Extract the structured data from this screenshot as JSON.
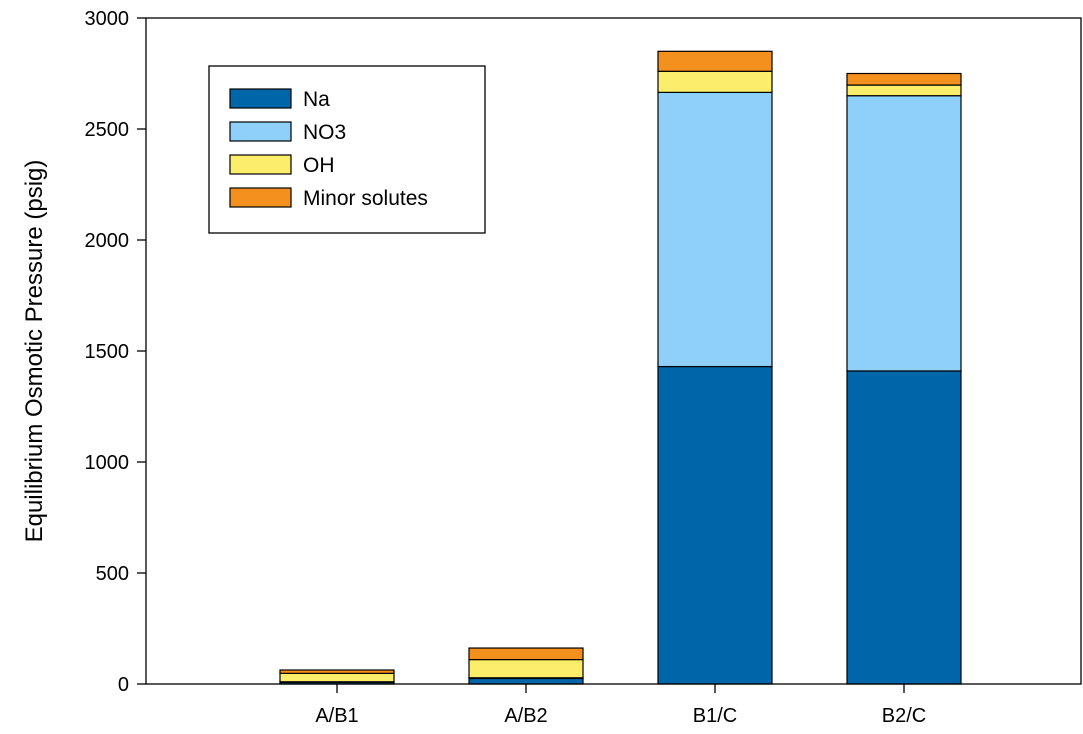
{
  "chart_data": {
    "type": "bar",
    "stacked": true,
    "categories": [
      "A/B1",
      "A/B2",
      "B1/C",
      "B2/C"
    ],
    "ylabel": "Equilibrium Osmotic Pressure (psig)",
    "xlabel": "",
    "ylim": [
      0,
      3000
    ],
    "yticks": [
      0,
      500,
      1000,
      1500,
      2000,
      2500,
      3000
    ],
    "grid": false,
    "legend_position": "top-left",
    "series": [
      {
        "name": "Na",
        "color": "#0066aa",
        "values": [
          8,
          25,
          1430,
          1410
        ]
      },
      {
        "name": "NO3",
        "color": "#8fd0fb",
        "values": [
          2,
          3,
          1235,
          1240
        ]
      },
      {
        "name": "OH",
        "color": "#fcee6a",
        "values": [
          38,
          82,
          95,
          48
        ]
      },
      {
        "name": "Minor solutes",
        "color": "#f4901e",
        "values": [
          15,
          52,
          90,
          52
        ]
      }
    ]
  }
}
